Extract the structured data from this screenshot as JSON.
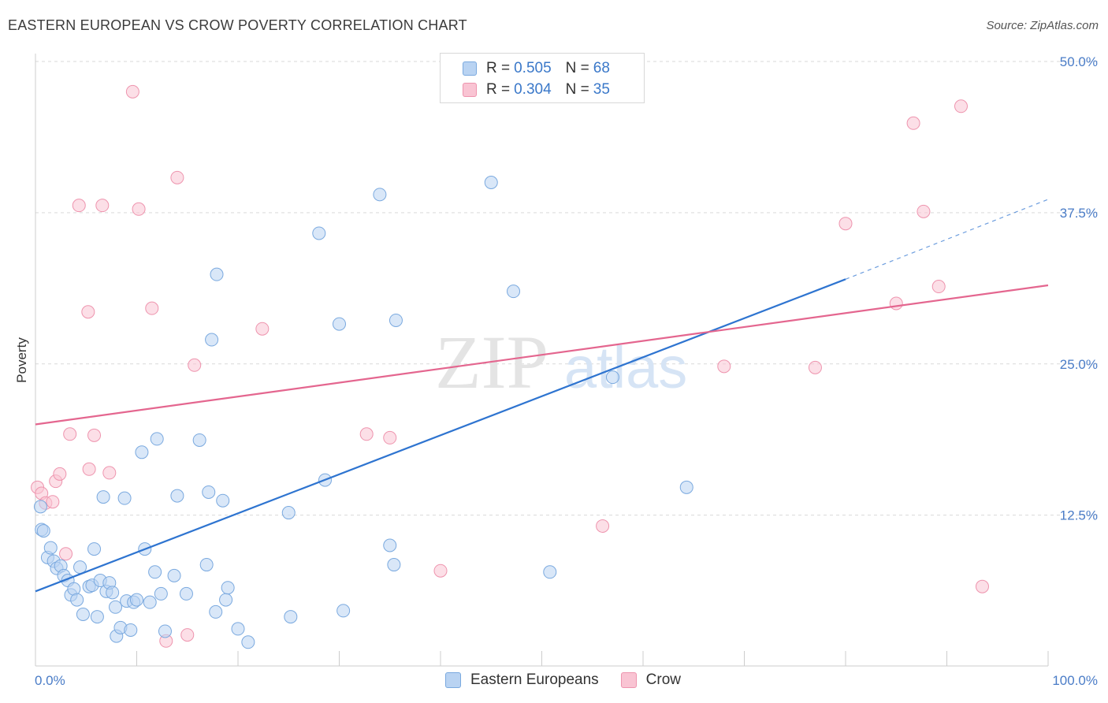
{
  "header": {
    "title": "EASTERN EUROPEAN VS CROW POVERTY CORRELATION CHART",
    "source": "Source: ZipAtlas.com"
  },
  "watermark": {
    "text_a": "ZIP",
    "text_b": "atlas"
  },
  "legend": {
    "rows": [
      {
        "r_label": "R = ",
        "r_value": "0.505",
        "n_label": "N = ",
        "n_value": "68"
      },
      {
        "r_label": "R = ",
        "r_value": "0.304",
        "n_label": "N = ",
        "n_value": "35"
      }
    ],
    "bottom": [
      "Eastern Europeans",
      "Crow"
    ]
  },
  "colors": {
    "blue_fill": "#b9d3f2",
    "blue_stroke": "#7aa9df",
    "blue_line": "#2e74d0",
    "pink_fill": "#f9c4d3",
    "pink_stroke": "#ee94ae",
    "pink_line": "#e4668f",
    "grid": "#d9d9d9",
    "tick_label": "#4a7cc7"
  },
  "chart_data": {
    "type": "scatter",
    "title": "EASTERN EUROPEAN VS CROW POVERTY CORRELATION CHART",
    "xlabel": "",
    "ylabel": "Poverty",
    "xlim": [
      0,
      100
    ],
    "ylim": [
      0,
      52
    ],
    "x_tick_labels": [
      "0.0%",
      "100.0%"
    ],
    "y_ticks": [
      12.5,
      25.0,
      37.5,
      50.0
    ],
    "y_tick_labels": [
      "12.5%",
      "25.0%",
      "37.5%",
      "50.0%"
    ],
    "grid": "horizontal dashed",
    "legend_position": "top-center",
    "series": [
      {
        "name": "Eastern Europeans",
        "R": 0.505,
        "N": 68,
        "trend": {
          "x0": 0,
          "y0": 6.2,
          "x1": 80,
          "y1": 32.0,
          "dashed_to_x": 100,
          "dashed_to_y": 38.6
        },
        "points": [
          [
            0.5,
            13.2
          ],
          [
            0.6,
            11.3
          ],
          [
            0.8,
            11.2
          ],
          [
            1.2,
            9.0
          ],
          [
            1.5,
            9.8
          ],
          [
            1.8,
            8.7
          ],
          [
            2.1,
            8.1
          ],
          [
            2.5,
            8.3
          ],
          [
            2.8,
            7.5
          ],
          [
            3.2,
            7.1
          ],
          [
            3.5,
            5.9
          ],
          [
            3.8,
            6.4
          ],
          [
            4.1,
            5.5
          ],
          [
            4.4,
            8.2
          ],
          [
            4.7,
            4.3
          ],
          [
            5.3,
            6.6
          ],
          [
            5.6,
            6.7
          ],
          [
            5.8,
            9.7
          ],
          [
            6.1,
            4.1
          ],
          [
            6.4,
            7.1
          ],
          [
            6.7,
            14.0
          ],
          [
            7.0,
            6.2
          ],
          [
            7.3,
            6.9
          ],
          [
            7.6,
            6.1
          ],
          [
            7.9,
            4.9
          ],
          [
            8.0,
            2.5
          ],
          [
            8.4,
            3.2
          ],
          [
            8.8,
            13.9
          ],
          [
            9.0,
            5.4
          ],
          [
            9.4,
            3.0
          ],
          [
            9.7,
            5.3
          ],
          [
            10.0,
            5.5
          ],
          [
            10.5,
            17.7
          ],
          [
            10.8,
            9.7
          ],
          [
            11.3,
            5.3
          ],
          [
            11.8,
            7.8
          ],
          [
            12.0,
            18.8
          ],
          [
            12.4,
            6.0
          ],
          [
            12.8,
            2.9
          ],
          [
            13.7,
            7.5
          ],
          [
            14.0,
            14.1
          ],
          [
            14.9,
            6.0
          ],
          [
            16.2,
            18.7
          ],
          [
            16.9,
            8.4
          ],
          [
            17.1,
            14.4
          ],
          [
            17.4,
            27.0
          ],
          [
            17.8,
            4.5
          ],
          [
            17.9,
            32.4
          ],
          [
            18.5,
            13.7
          ],
          [
            18.8,
            5.5
          ],
          [
            19.0,
            6.5
          ],
          [
            20.0,
            3.1
          ],
          [
            21.0,
            2.0
          ],
          [
            25.0,
            12.7
          ],
          [
            25.2,
            4.1
          ],
          [
            28.0,
            35.8
          ],
          [
            28.6,
            15.4
          ],
          [
            30.0,
            28.3
          ],
          [
            30.4,
            4.6
          ],
          [
            34.0,
            39.0
          ],
          [
            35.0,
            10.0
          ],
          [
            35.4,
            8.4
          ],
          [
            35.6,
            28.6
          ],
          [
            45.0,
            40.0
          ],
          [
            47.2,
            31.0
          ],
          [
            50.8,
            7.8
          ],
          [
            57.0,
            23.9
          ],
          [
            64.3,
            14.8
          ]
        ]
      },
      {
        "name": "Crow",
        "R": 0.304,
        "N": 35,
        "trend": {
          "x0": 0,
          "y0": 20.0,
          "x1": 100,
          "y1": 31.5
        },
        "points": [
          [
            0.2,
            14.8
          ],
          [
            0.6,
            14.3
          ],
          [
            1.0,
            13.5
          ],
          [
            1.7,
            13.6
          ],
          [
            2.0,
            15.3
          ],
          [
            2.4,
            15.9
          ],
          [
            3.0,
            9.3
          ],
          [
            3.4,
            19.2
          ],
          [
            4.3,
            38.1
          ],
          [
            5.2,
            29.3
          ],
          [
            5.3,
            16.3
          ],
          [
            5.8,
            19.1
          ],
          [
            6.6,
            38.1
          ],
          [
            7.3,
            16.0
          ],
          [
            9.6,
            47.5
          ],
          [
            10.2,
            37.8
          ],
          [
            11.5,
            29.6
          ],
          [
            12.9,
            2.1
          ],
          [
            14.0,
            40.4
          ],
          [
            15.0,
            2.6
          ],
          [
            15.7,
            24.9
          ],
          [
            22.4,
            27.9
          ],
          [
            32.7,
            19.2
          ],
          [
            35.0,
            18.9
          ],
          [
            40.0,
            7.9
          ],
          [
            56.0,
            11.6
          ],
          [
            68.0,
            24.8
          ],
          [
            77.0,
            24.7
          ],
          [
            80.0,
            36.6
          ],
          [
            85.0,
            30.0
          ],
          [
            86.7,
            44.9
          ],
          [
            87.7,
            37.6
          ],
          [
            89.2,
            31.4
          ],
          [
            91.4,
            46.3
          ],
          [
            93.5,
            6.6
          ]
        ]
      }
    ]
  }
}
